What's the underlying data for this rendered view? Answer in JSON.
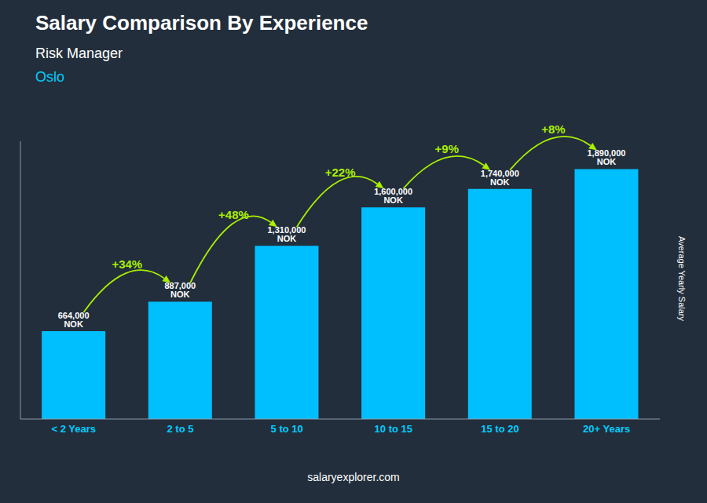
{
  "chart_data": {
    "type": "bar",
    "title": "Salary Comparison By Experience",
    "subtitle": "Risk Manager",
    "city": "Oslo",
    "ylabel": "Average Yearly Salary",
    "footer": "salaryexplorer.com",
    "categories": [
      "< 2 Years",
      "2 to 5",
      "5 to 10",
      "10 to 15",
      "15 to 20",
      "20+ Years"
    ],
    "values": [
      664000,
      887000,
      1310000,
      1600000,
      1740000,
      1890000
    ],
    "value_labels": [
      "664,000 NOK",
      "887,000 NOK",
      "1,310,000 NOK",
      "1,600,000 NOK",
      "1,740,000 NOK",
      "1,890,000 NOK"
    ],
    "data_labels": true,
    "annotations": [
      {
        "text": "+34%",
        "color": "#aaee00"
      },
      {
        "text": "+48%",
        "color": "#aaee00"
      },
      {
        "text": "+22%",
        "color": "#aaee00"
      },
      {
        "text": "+9%",
        "color": "#aaee00"
      },
      {
        "text": "+8%",
        "color": "#aaee00"
      }
    ],
    "color": "#00bfff",
    "ylim": [
      0,
      2100000
    ],
    "tick_labels": "x",
    "grid": false
  }
}
